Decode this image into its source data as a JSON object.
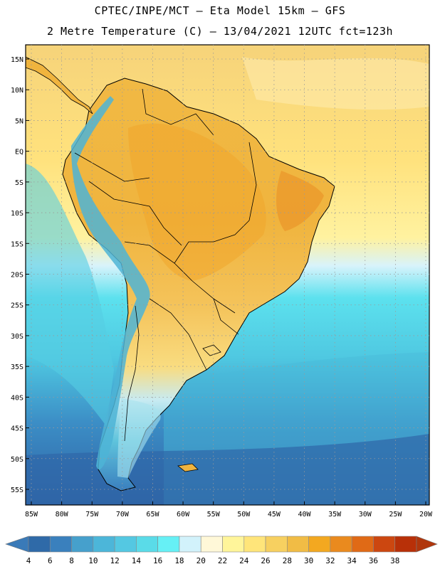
{
  "header": {
    "line1": "CPTEC/INPE/MCT –  Eta Model 15km – GFS",
    "line2": "2 Metre Temperature (C) – 13/04/2021 12UTC fct=123h"
  },
  "map": {
    "lat_labels": [
      "15N",
      "10N",
      "5N",
      "EQ",
      "5S",
      "10S",
      "15S",
      "20S",
      "25S",
      "30S",
      "35S",
      "40S",
      "45S",
      "50S",
      "55S"
    ],
    "lon_labels": [
      "85W",
      "80W",
      "75W",
      "70W",
      "65W",
      "60W",
      "55W",
      "50W",
      "45W",
      "40W",
      "35W",
      "30W",
      "25W",
      "20W"
    ]
  },
  "colorbar": {
    "labels": [
      "4",
      "6",
      "8",
      "10",
      "12",
      "14",
      "16",
      "18",
      "20",
      "22",
      "24",
      "26",
      "28",
      "30",
      "32",
      "34",
      "36",
      "38"
    ],
    "colors": [
      "#2f6aa8",
      "#3a80bd",
      "#46a0cc",
      "#4cb6d9",
      "#54c8e2",
      "#5adbe8",
      "#66f0f5",
      "#d2f2fb",
      "#fff8d8",
      "#fff59a",
      "#ffe57a",
      "#f7d060",
      "#f1bc45",
      "#f3a820",
      "#ea8a1e",
      "#e06a16",
      "#cc4710",
      "#b83008"
    ],
    "left_arrow_color": "#3a7ab8",
    "right_arrow_color": "#b0360c"
  }
}
